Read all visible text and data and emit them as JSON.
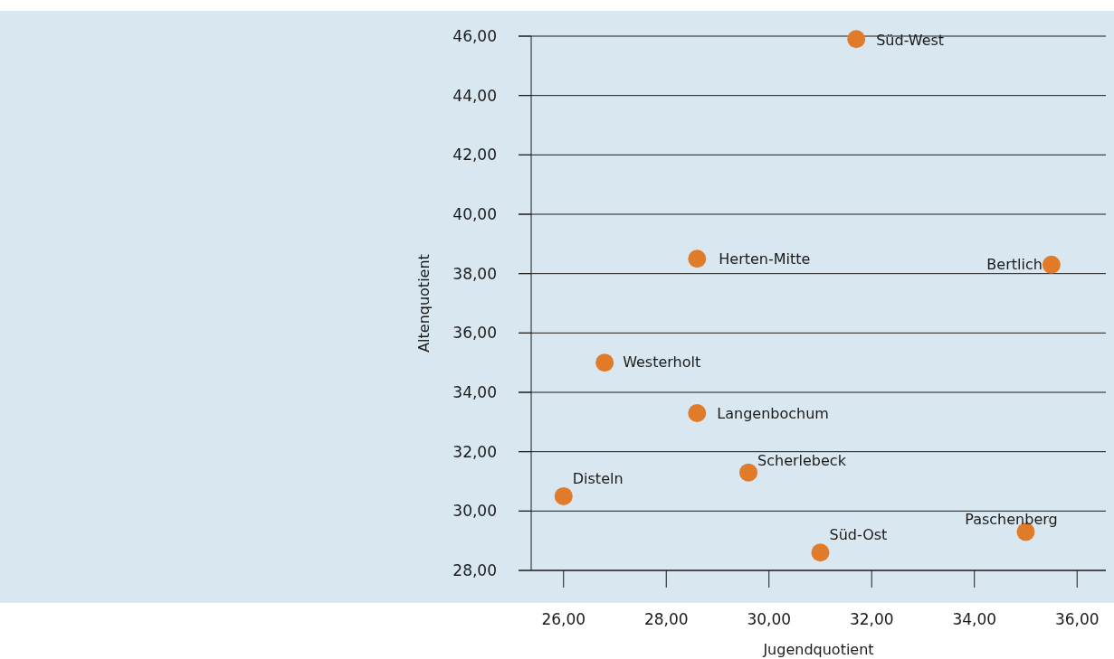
{
  "chart_data": {
    "type": "scatter",
    "xlabel": "Jugendquotient",
    "ylabel": "Altenquotient",
    "x": [
      31.7,
      28.6,
      35.5,
      26.8,
      28.6,
      29.6,
      26.0,
      31.0,
      35.0
    ],
    "values": [
      45.9,
      38.5,
      38.3,
      35.0,
      33.3,
      31.3,
      30.5,
      28.6,
      29.3
    ],
    "color": "#e07b29",
    "marker": "circle",
    "grid": "y",
    "xlim": [
      25.37,
      36.56
    ],
    "ylim": [
      28,
      46
    ],
    "xticks": [
      {
        "value": 26,
        "label": "26,00"
      },
      {
        "value": 28,
        "label": "28,00"
      },
      {
        "value": 30,
        "label": "30,00"
      },
      {
        "value": 32,
        "label": "32,00"
      },
      {
        "value": 34,
        "label": "34,00"
      },
      {
        "value": 36,
        "label": "36,00"
      }
    ],
    "yticks": [
      {
        "value": 28,
        "label": "28,00"
      },
      {
        "value": 30,
        "label": "30,00"
      },
      {
        "value": 32,
        "label": "32,00"
      },
      {
        "value": 34,
        "label": "34,00"
      },
      {
        "value": 36,
        "label": "36,00"
      },
      {
        "value": 38,
        "label": "38,00"
      },
      {
        "value": 40,
        "label": "40,00"
      },
      {
        "value": 42,
        "label": "42,00"
      },
      {
        "value": 44,
        "label": "44,00"
      },
      {
        "value": 46,
        "label": "46,00"
      }
    ],
    "annotations": [
      {
        "text": "Süd-West",
        "x": 31.7,
        "y": 45.9
      },
      {
        "text": "Herten-Mitte",
        "x": 28.6,
        "y": 38.5
      },
      {
        "text": "Bertlich",
        "x": 35.5,
        "y": 38.3
      },
      {
        "text": "Westerholt",
        "x": 26.8,
        "y": 35.0
      },
      {
        "text": "Langenbochum",
        "x": 28.6,
        "y": 33.3
      },
      {
        "text": "Scherlebeck",
        "x": 29.6,
        "y": 31.3
      },
      {
        "text": "Disteln",
        "x": 26.0,
        "y": 30.5
      },
      {
        "text": "Süd-Ost",
        "x": 31.0,
        "y": 28.6
      },
      {
        "text": "Paschenberg",
        "x": 35.0,
        "y": 29.3
      }
    ]
  }
}
